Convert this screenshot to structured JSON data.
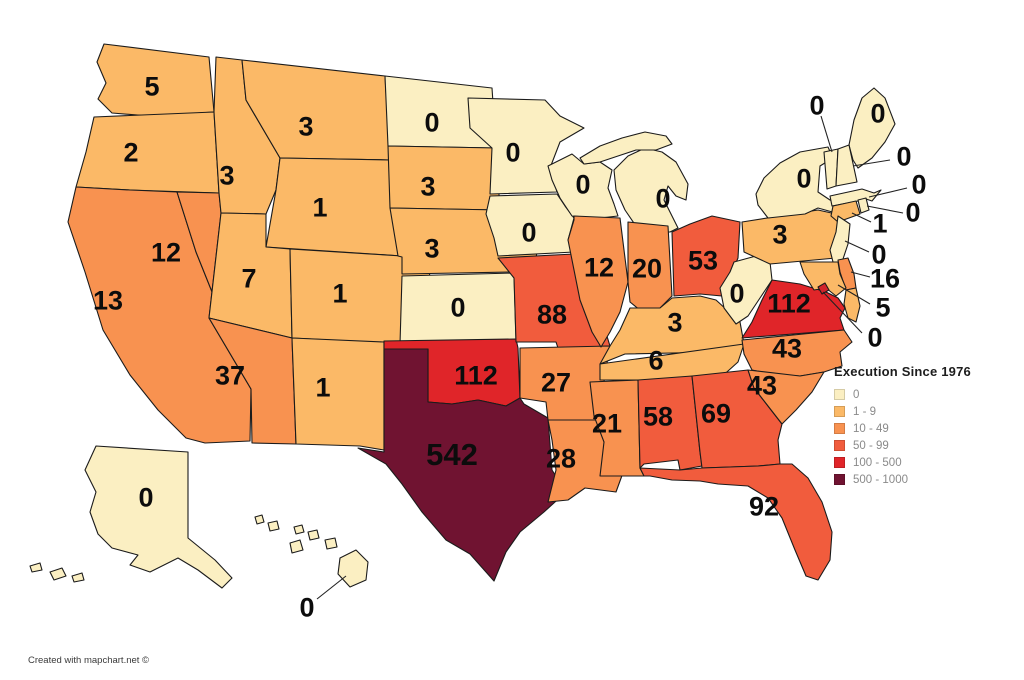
{
  "title": "Execution Since 1976",
  "attribution": "Created with mapchart.net ©",
  "legend": {
    "title": "Execution Since 1976",
    "bands": [
      {
        "label": "0",
        "color": "#FBEFC2"
      },
      {
        "label": "1 - 9",
        "color": "#FBB967"
      },
      {
        "label": "10 - 49",
        "color": "#F89250"
      },
      {
        "label": "50 - 99",
        "color": "#F15C3D"
      },
      {
        "label": "100 - 500",
        "color": "#E02529"
      },
      {
        "label": "500 - 1000",
        "color": "#701331"
      }
    ]
  },
  "map": {
    "states": [
      {
        "id": "WA",
        "name": "Washington",
        "value": 5,
        "band": 1
      },
      {
        "id": "OR",
        "name": "Oregon",
        "value": 2,
        "band": 1
      },
      {
        "id": "CA",
        "name": "California",
        "value": 13,
        "band": 2
      },
      {
        "id": "NV",
        "name": "Nevada",
        "value": 12,
        "band": 2
      },
      {
        "id": "ID",
        "name": "Idaho",
        "value": 3,
        "band": 1
      },
      {
        "id": "MT",
        "name": "Montana",
        "value": 3,
        "band": 1
      },
      {
        "id": "WY",
        "name": "Wyoming",
        "value": 1,
        "band": 1
      },
      {
        "id": "UT",
        "name": "Utah",
        "value": 7,
        "band": 1
      },
      {
        "id": "CO",
        "name": "Colorado",
        "value": 1,
        "band": 1
      },
      {
        "id": "AZ",
        "name": "Arizona",
        "value": 37,
        "band": 2
      },
      {
        "id": "NM",
        "name": "New Mexico",
        "value": 1,
        "band": 1
      },
      {
        "id": "ND",
        "name": "North Dakota",
        "value": 0,
        "band": 0
      },
      {
        "id": "SD",
        "name": "South Dakota",
        "value": 3,
        "band": 1
      },
      {
        "id": "NE",
        "name": "Nebraska",
        "value": 3,
        "band": 1
      },
      {
        "id": "KS",
        "name": "Kansas",
        "value": 0,
        "band": 0
      },
      {
        "id": "OK",
        "name": "Oklahoma",
        "value": 112,
        "band": 4
      },
      {
        "id": "TX",
        "name": "Texas",
        "value": 542,
        "band": 5
      },
      {
        "id": "MN",
        "name": "Minnesota",
        "value": 0,
        "band": 0
      },
      {
        "id": "IA",
        "name": "Iowa",
        "value": 0,
        "band": 0
      },
      {
        "id": "MO",
        "name": "Missouri",
        "value": 88,
        "band": 3
      },
      {
        "id": "AR",
        "name": "Arkansas",
        "value": 27,
        "band": 2
      },
      {
        "id": "LA",
        "name": "Louisiana",
        "value": 28,
        "band": 2
      },
      {
        "id": "WI",
        "name": "Wisconsin",
        "value": 0,
        "band": 0
      },
      {
        "id": "IL",
        "name": "Illinois",
        "value": 12,
        "band": 2
      },
      {
        "id": "MI",
        "name": "Michigan",
        "value": 0,
        "band": 0
      },
      {
        "id": "IN",
        "name": "Indiana",
        "value": 20,
        "band": 2
      },
      {
        "id": "OH",
        "name": "Ohio",
        "value": 53,
        "band": 3
      },
      {
        "id": "KY",
        "name": "Kentucky",
        "value": 3,
        "band": 1
      },
      {
        "id": "TN",
        "name": "Tennessee",
        "value": 6,
        "band": 1
      },
      {
        "id": "MS",
        "name": "Mississippi",
        "value": 21,
        "band": 2
      },
      {
        "id": "AL",
        "name": "Alabama",
        "value": 58,
        "band": 3
      },
      {
        "id": "GA",
        "name": "Georgia",
        "value": 69,
        "band": 3
      },
      {
        "id": "FL",
        "name": "Florida",
        "value": 92,
        "band": 3
      },
      {
        "id": "WV",
        "name": "West Virginia",
        "value": 0,
        "band": 0
      },
      {
        "id": "VA",
        "name": "Virginia",
        "value": 112,
        "band": 4
      },
      {
        "id": "NC",
        "name": "North Carolina",
        "value": 43,
        "band": 2
      },
      {
        "id": "SC",
        "name": "South Carolina",
        "value": 43,
        "band": 2
      },
      {
        "id": "PA",
        "name": "Pennsylvania",
        "value": 3,
        "band": 1
      },
      {
        "id": "NY",
        "name": "New York",
        "value": 0,
        "band": 0
      },
      {
        "id": "ME",
        "name": "Maine",
        "value": 0,
        "band": 0
      },
      {
        "id": "VT",
        "name": "Vermont",
        "value": 0,
        "band": 0
      },
      {
        "id": "NH",
        "name": "New Hampshire",
        "value": 0,
        "band": 0
      },
      {
        "id": "MA",
        "name": "Massachusetts",
        "value": 0,
        "band": 0
      },
      {
        "id": "RI",
        "name": "Rhode Island",
        "value": 0,
        "band": 0
      },
      {
        "id": "CT",
        "name": "Connecticut",
        "value": 1,
        "band": 1
      },
      {
        "id": "NJ",
        "name": "New Jersey",
        "value": 0,
        "band": 0
      },
      {
        "id": "DE",
        "name": "Delaware",
        "value": 16,
        "band": 2
      },
      {
        "id": "MD",
        "name": "Maryland",
        "value": 5,
        "band": 1
      },
      {
        "id": "DC",
        "name": "District of Columbia",
        "value": 0,
        "band": 0
      },
      {
        "id": "AK",
        "name": "Alaska",
        "value": 0,
        "band": 0
      },
      {
        "id": "HI",
        "name": "Hawaii",
        "value": 0,
        "band": 0
      }
    ]
  }
}
